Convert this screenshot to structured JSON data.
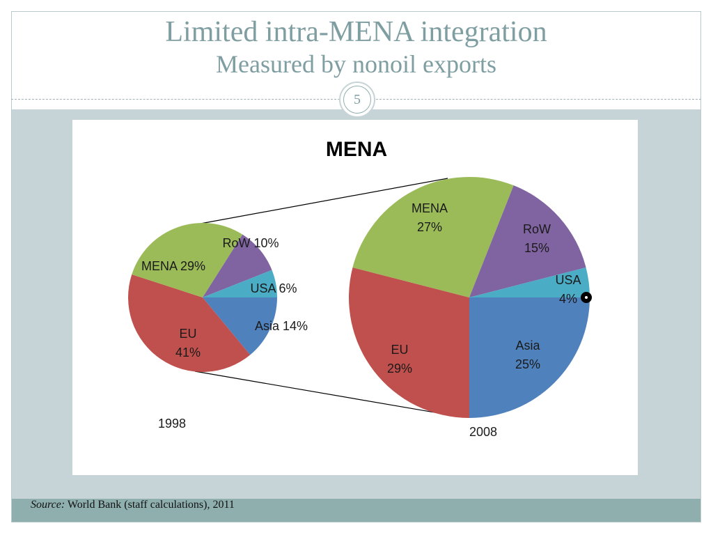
{
  "slide": {
    "title": "Limited intra-MENA integration",
    "subtitle": "Measured by nonoil exports",
    "page_number": "5",
    "source_label": "Source:",
    "source_text": "World Bank (staff calculations), 2011"
  },
  "chart_data": {
    "type": "pie",
    "title": "MENA",
    "pies": [
      {
        "name": "1998",
        "slices": [
          {
            "category": "Asia",
            "value": 14,
            "label_lines": [
              "Asia 14%"
            ],
            "color": "#4f81bd"
          },
          {
            "category": "EU",
            "value": 41,
            "label_lines": [
              "EU",
              "41%"
            ],
            "color": "#c0504d"
          },
          {
            "category": "MENA",
            "value": 29,
            "label_lines": [
              "MENA 29%"
            ],
            "color": "#9bbb59"
          },
          {
            "category": "RoW",
            "value": 10,
            "label_lines": [
              "RoW 10%"
            ],
            "color": "#8064a2"
          },
          {
            "category": "USA",
            "value": 6,
            "label_lines": [
              "USA 6%"
            ],
            "color": "#4bacc6"
          }
        ]
      },
      {
        "name": "2008",
        "slices": [
          {
            "category": "Asia",
            "value": 25,
            "label_lines": [
              "Asia",
              "25%"
            ],
            "color": "#4f81bd"
          },
          {
            "category": "EU",
            "value": 29,
            "label_lines": [
              "EU",
              "29%"
            ],
            "color": "#c0504d"
          },
          {
            "category": "MENA",
            "value": 27,
            "label_lines": [
              "MENA",
              "27%"
            ],
            "color": "#9bbb59"
          },
          {
            "category": "RoW",
            "value": 15,
            "label_lines": [
              "RoW",
              "15%"
            ],
            "color": "#8064a2"
          },
          {
            "category": "USA",
            "value": 4,
            "label_lines": [
              "USA",
              "4%"
            ],
            "color": "#4bacc6"
          }
        ]
      }
    ],
    "legend": "none"
  }
}
